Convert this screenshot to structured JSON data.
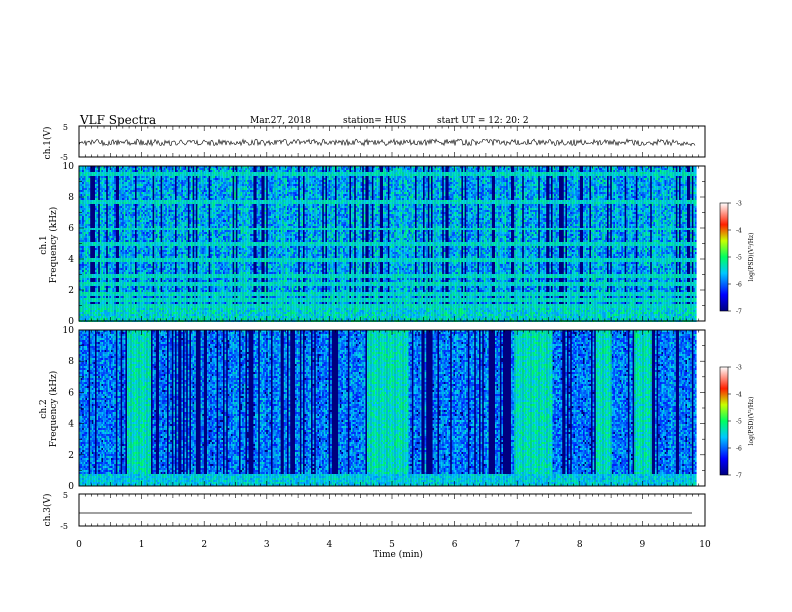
{
  "header": {
    "title": "VLF Spectra",
    "date": "Mar.27, 2018",
    "station": "station= HUS",
    "start": "start  UT =   12: 20: 2"
  },
  "chart_data": [
    {
      "type": "line",
      "ylabel": "ch.1(V)",
      "ylim": [
        -5,
        5
      ],
      "yticks": [
        "5",
        "-5"
      ],
      "series": [
        {
          "values_description_level": -0.3,
          "noise_amplitude": 0.35
        }
      ]
    },
    {
      "type": "heatmap",
      "ylabel_top": "ch.1",
      "ylabel": "Frequency (kHz)",
      "ylim": [
        0,
        10
      ],
      "yticks": [
        "0",
        "2",
        "4",
        "6",
        "8",
        "10"
      ],
      "xlim": [
        0,
        9.85
      ],
      "colorbar": {
        "label": "log(PSD)(V²/Hz)",
        "range": [
          -7,
          -3
        ],
        "ticks": [
          "-3",
          "-4",
          "-5",
          "-6",
          "-7"
        ]
      },
      "bright_bands_khz": [
        0.3,
        0.6,
        1.0,
        1.4,
        1.8,
        2.5,
        3.0,
        4.0,
        5.0,
        6.0,
        7.7,
        9.5
      ]
    },
    {
      "type": "heatmap",
      "ylabel_top": "ch.2",
      "ylabel": "Frequency (kHz)",
      "ylim": [
        0,
        10
      ],
      "yticks": [
        "0",
        "2",
        "4",
        "6",
        "8",
        "10"
      ],
      "xlim": [
        0,
        9.85
      ],
      "colorbar": {
        "label": "log(PSD)(V²/Hz)",
        "range": [
          -7,
          -3
        ],
        "ticks": [
          "-3",
          "-4",
          "-5",
          "-6",
          "-7"
        ]
      },
      "burst_intervals_min": [
        [
          0.75,
          1.15
        ],
        [
          4.6,
          5.25
        ],
        [
          6.95,
          7.55
        ],
        [
          8.25,
          8.5
        ],
        [
          8.85,
          9.15
        ]
      ]
    },
    {
      "type": "line",
      "ylabel": "ch.3(V)",
      "ylim": [
        -5,
        5
      ],
      "yticks": [
        "5",
        "-5"
      ],
      "series": [
        {
          "constant": -1.5
        }
      ]
    }
  ],
  "xaxis": {
    "label": "Time (min)",
    "xlim": [
      0,
      10
    ],
    "ticks": [
      "0",
      "1",
      "2",
      "3",
      "4",
      "5",
      "6",
      "7",
      "8",
      "9",
      "10"
    ]
  }
}
